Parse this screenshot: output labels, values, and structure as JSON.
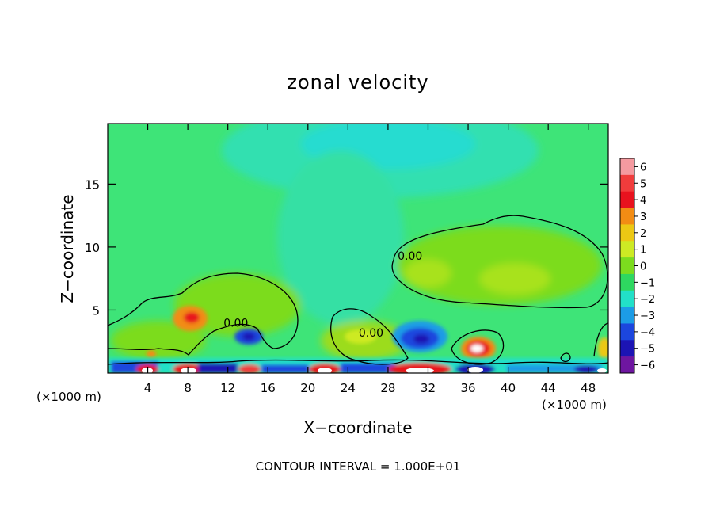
{
  "chart_data": {
    "type": "heatmap",
    "title": "zonal velocity",
    "xlabel": "X−coordinate",
    "ylabel": "Z−coordinate",
    "x_unit_left": "(×1000 m)",
    "x_unit_right": "(×1000 m)",
    "footnote": "CONTOUR INTERVAL = 1.000E+01",
    "xlim": [
      0,
      50
    ],
    "ylim": [
      0,
      19.8
    ],
    "x_ticks": [
      4,
      8,
      12,
      16,
      20,
      24,
      28,
      32,
      36,
      40,
      44,
      48
    ],
    "y_ticks": [
      5,
      10,
      15
    ],
    "contour_labels": [
      {
        "text": "0.00",
        "x": 12.8,
        "y": 4.0
      },
      {
        "text": "0.00",
        "x": 30.2,
        "y": 9.3
      },
      {
        "text": "0.00",
        "x": 26.3,
        "y": 3.2
      }
    ],
    "colorbar": {
      "levels": [
        6,
        5,
        4,
        3,
        2,
        1,
        0,
        -1,
        -2,
        -3,
        -4,
        -5,
        -6
      ],
      "tick_labels": [
        "6",
        "5",
        "4",
        "3",
        "2",
        "1",
        "0",
        "−1",
        "−2",
        "−3",
        "−4",
        "−5",
        "−6"
      ],
      "colors": [
        "#f49aa0",
        "#f03c3c",
        "#e8121e",
        "#f28c14",
        "#ecc814",
        "#cdea24",
        "#7cdc1e",
        "#2ed860",
        "#22e0c8",
        "#1c9ce6",
        "#1c46de",
        "#1c14b4",
        "#6e16a0"
      ]
    }
  }
}
